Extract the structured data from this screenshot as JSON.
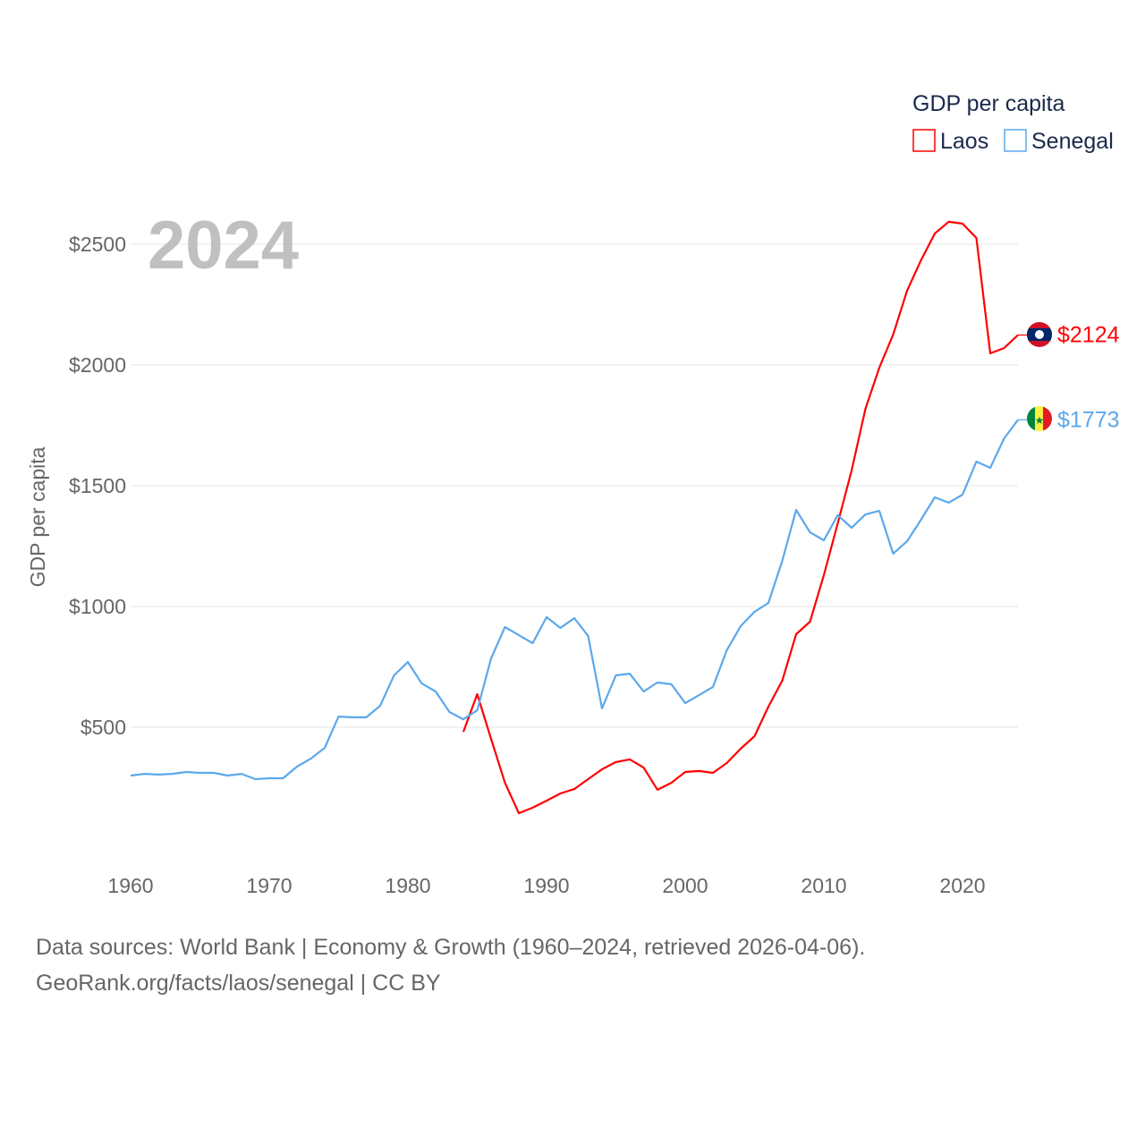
{
  "chart_data": {
    "type": "line",
    "title": "",
    "big_year_label": "2024",
    "xlabel": "",
    "ylabel": "GDP per capita",
    "xlim": [
      1960,
      2024
    ],
    "ylim": [
      0,
      2700
    ],
    "x_ticks": [
      1960,
      1970,
      1980,
      1990,
      2000,
      2010,
      2020
    ],
    "y_ticks": [
      500,
      1000,
      1500,
      2000,
      2500
    ],
    "y_tick_labels": [
      "$500",
      "$1000",
      "$1500",
      "$2000",
      "$2500"
    ],
    "grid": true,
    "legend": {
      "title": "GDP per capita",
      "placement": "top-right"
    },
    "series": [
      {
        "name": "Laos",
        "color": "#ff0000",
        "end_label": "$2124",
        "flag": "laos-flag",
        "start_year": 1984,
        "values": [
          481,
          637,
          452,
          270,
          144,
          167,
          196,
          226,
          244,
          285,
          326,
          356,
          367,
          333,
          241,
          270,
          315,
          319,
          311,
          352,
          411,
          463,
          585,
          693,
          885,
          937,
          1130,
          1344,
          1563,
          1819,
          1989,
          2126,
          2307,
          2433,
          2544,
          2593,
          2585,
          2526,
          2048,
          2070,
          2124
        ]
      },
      {
        "name": "Senegal",
        "color": "#5ca8eb",
        "end_label": "$1773",
        "flag": "senegal-flag",
        "start_year": 1960,
        "values": [
          300,
          307,
          304,
          307,
          315,
          311,
          311,
          300,
          307,
          285,
          289,
          289,
          337,
          370,
          415,
          544,
          541,
          541,
          589,
          715,
          770,
          681,
          648,
          563,
          533,
          570,
          785,
          915,
          881,
          848,
          956,
          911,
          952,
          878,
          578,
          715,
          722,
          648,
          685,
          678,
          600,
          633,
          667,
          819,
          919,
          978,
          1015,
          1189,
          1400,
          1307,
          1274,
          1378,
          1326,
          1381,
          1396,
          1219,
          1270,
          1359,
          1452,
          1430,
          1463,
          1600,
          1574,
          1696,
          1773
        ]
      }
    ]
  },
  "footer": {
    "line1": "Data sources: World Bank | Economy & Growth (1960–2024, retrieved 2026-04-06).",
    "line2": "GeoRank.org/facts/laos/senegal | CC BY"
  }
}
